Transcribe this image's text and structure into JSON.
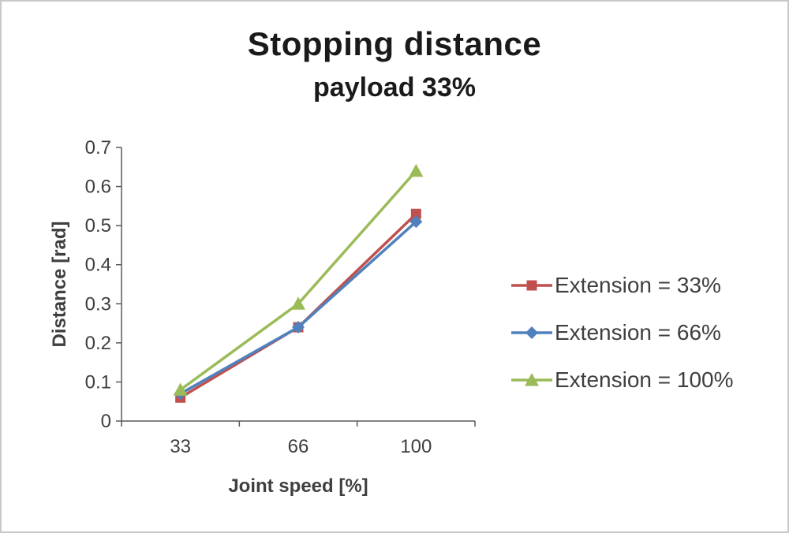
{
  "chart_data": {
    "type": "line",
    "title": "Stopping distance",
    "subtitle": "payload 33%",
    "xlabel": "Joint speed [%]",
    "ylabel": "Distance [rad]",
    "categories": [
      "33",
      "66",
      "100"
    ],
    "series": [
      {
        "name": "Extension = 33%",
        "color": "#c0504d",
        "marker": "square",
        "values": [
          0.06,
          0.24,
          0.53
        ]
      },
      {
        "name": "Extension = 66%",
        "color": "#4f81bd",
        "marker": "diamond",
        "values": [
          0.07,
          0.24,
          0.51
        ]
      },
      {
        "name": "Extension = 100%",
        "color": "#9bbb59",
        "marker": "triangle",
        "values": [
          0.08,
          0.3,
          0.64
        ]
      }
    ],
    "ylim": [
      0,
      0.7
    ],
    "ytick_step": 0.1,
    "grid": false,
    "legend_position": "right",
    "axis_color": "#595959",
    "text_color": "#3f3f3f"
  }
}
